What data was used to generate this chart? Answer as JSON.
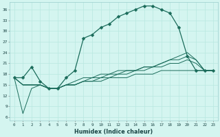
{
  "xlabel": "Humidex (Indice chaleur)",
  "bg_color": "#d4f5f0",
  "grid_color": "#b8e8e0",
  "line_color": "#1a6b5a",
  "xlim": [
    -0.5,
    23.5
  ],
  "ylim": [
    5,
    38
  ],
  "yticks": [
    6,
    9,
    12,
    15,
    18,
    21,
    24,
    27,
    30,
    33,
    36
  ],
  "xticks": [
    0,
    1,
    2,
    3,
    4,
    5,
    6,
    7,
    8,
    9,
    10,
    11,
    12,
    13,
    14,
    15,
    16,
    17,
    18,
    19,
    20,
    21,
    22,
    23
  ],
  "main_x": [
    0,
    1,
    2,
    3,
    4,
    5,
    6,
    7,
    8,
    9,
    10,
    11,
    12,
    13,
    14,
    15,
    16,
    17,
    18,
    19,
    20,
    21,
    22,
    23
  ],
  "main_y": [
    17,
    17,
    20,
    16,
    14,
    14,
    17,
    19,
    28,
    29,
    31,
    32,
    34,
    35,
    36,
    37,
    37,
    36,
    35,
    31,
    23,
    19,
    19,
    19
  ],
  "line1_x": [
    0,
    1,
    2,
    3,
    4,
    5,
    6,
    7,
    8,
    9,
    10,
    11,
    12,
    13,
    14,
    15,
    16,
    17,
    18,
    19,
    20,
    21,
    22,
    23
  ],
  "line1_y": [
    17,
    15,
    15,
    15,
    14,
    14,
    15,
    15,
    16,
    16,
    16,
    17,
    17,
    17,
    18,
    18,
    18,
    19,
    19,
    19,
    19,
    19,
    19,
    19
  ],
  "line2_x": [
    0,
    1,
    2,
    3,
    4,
    5,
    6,
    7,
    8,
    9,
    10,
    11,
    12,
    13,
    14,
    15,
    16,
    17,
    18,
    19,
    20,
    21,
    22,
    23
  ],
  "line2_y": [
    17,
    15,
    15,
    15,
    14,
    14,
    15,
    15,
    16,
    16,
    17,
    17,
    18,
    18,
    19,
    19,
    20,
    20,
    21,
    21,
    22,
    21,
    19,
    19
  ],
  "line3_x": [
    0,
    1,
    2,
    3,
    4,
    5,
    6,
    7,
    8,
    9,
    10,
    11,
    12,
    13,
    14,
    15,
    16,
    17,
    18,
    19,
    20,
    21,
    22,
    23
  ],
  "line3_y": [
    17,
    15,
    15,
    15,
    14,
    14,
    15,
    15,
    16,
    17,
    17,
    18,
    18,
    19,
    19,
    20,
    20,
    21,
    22,
    22,
    23,
    22,
    19,
    19
  ],
  "drop_x": [
    0,
    1,
    2,
    3,
    4,
    5,
    6,
    7,
    8,
    9,
    10,
    11,
    12,
    13,
    14,
    15,
    16,
    17,
    18,
    19,
    20,
    21,
    22,
    23
  ],
  "drop_y": [
    17,
    7,
    14,
    15,
    14,
    14,
    15,
    16,
    17,
    17,
    18,
    18,
    19,
    19,
    19,
    20,
    20,
    21,
    22,
    23,
    24,
    22,
    19,
    19
  ]
}
